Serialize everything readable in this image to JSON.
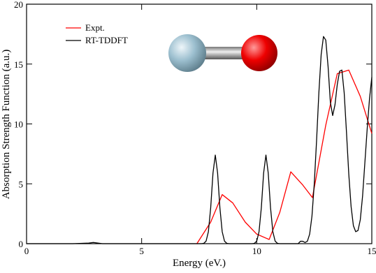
{
  "chart_data": {
    "type": "line",
    "x_label": "Energy (eV.)",
    "y_label": "Absorption Strength Function (a.u.)",
    "xlim": [
      0,
      15
    ],
    "xticks": [
      0,
      5,
      10,
      15
    ],
    "ylim": [
      0,
      20
    ],
    "yticks": [
      0,
      5,
      10,
      15,
      20
    ],
    "series": [
      {
        "name": "Expt.",
        "color": "#ff0000",
        "x": [
          7.4,
          8.0,
          8.5,
          8.96,
          9.5,
          10.0,
          10.54,
          11.0,
          11.48,
          12.0,
          12.42,
          13.0,
          13.5,
          14.0,
          14.5,
          15.0
        ],
        "values": [
          0,
          1.8,
          4.1,
          3.4,
          1.8,
          0.8,
          0.35,
          2.6,
          6.0,
          4.9,
          3.85,
          9.9,
          14.2,
          14.5,
          12.3,
          9.2
        ]
      },
      {
        "name": "RT-TDDFT",
        "color": "#000000",
        "x": [
          0,
          1,
          2,
          2.7,
          2.9,
          3.1,
          3.3,
          5,
          6,
          7,
          7.5,
          7.6,
          7.7,
          7.8,
          7.9,
          8.0,
          8.1,
          8.2,
          8.3,
          8.4,
          8.5,
          8.6,
          8.7,
          8.8,
          9.0,
          9.5,
          9.8,
          9.9,
          10.0,
          10.1,
          10.2,
          10.3,
          10.4,
          10.5,
          10.6,
          10.7,
          10.8,
          10.9,
          11.0,
          11.5,
          11.8,
          11.9,
          12.0,
          12.1,
          12.2,
          12.3,
          12.4,
          12.5,
          12.6,
          12.7,
          12.8,
          12.9,
          13.0,
          13.1,
          13.2,
          13.3,
          13.4,
          13.5,
          13.6,
          13.7,
          13.8,
          13.9,
          14.0,
          14.1,
          14.2,
          14.3,
          14.4,
          14.5,
          14.6,
          14.7,
          14.8,
          14.9,
          15.0
        ],
        "values": [
          0,
          0,
          0,
          0.05,
          0.1,
          0.05,
          0,
          0,
          0,
          0,
          0,
          0,
          0.03,
          0.21,
          1.0,
          3.0,
          5.9,
          7.4,
          5.9,
          3.0,
          1.0,
          0.21,
          0.03,
          0,
          0,
          0,
          0,
          0.03,
          0.21,
          1.0,
          3.0,
          5.9,
          7.4,
          5.9,
          3.0,
          1.0,
          0.21,
          0.03,
          0,
          0,
          0,
          0.2,
          0.2,
          0.1,
          0.2,
          0.8,
          2.3,
          5.0,
          8.6,
          12.6,
          15.8,
          17.3,
          17.0,
          14.8,
          11.8,
          10.7,
          11.6,
          13.3,
          14.4,
          14.5,
          12.6,
          9.3,
          5.8,
          3.1,
          1.5,
          1.0,
          1.1,
          2.0,
          4.0,
          6.8,
          9.6,
          12.1,
          13.9
        ]
      }
    ]
  }
}
